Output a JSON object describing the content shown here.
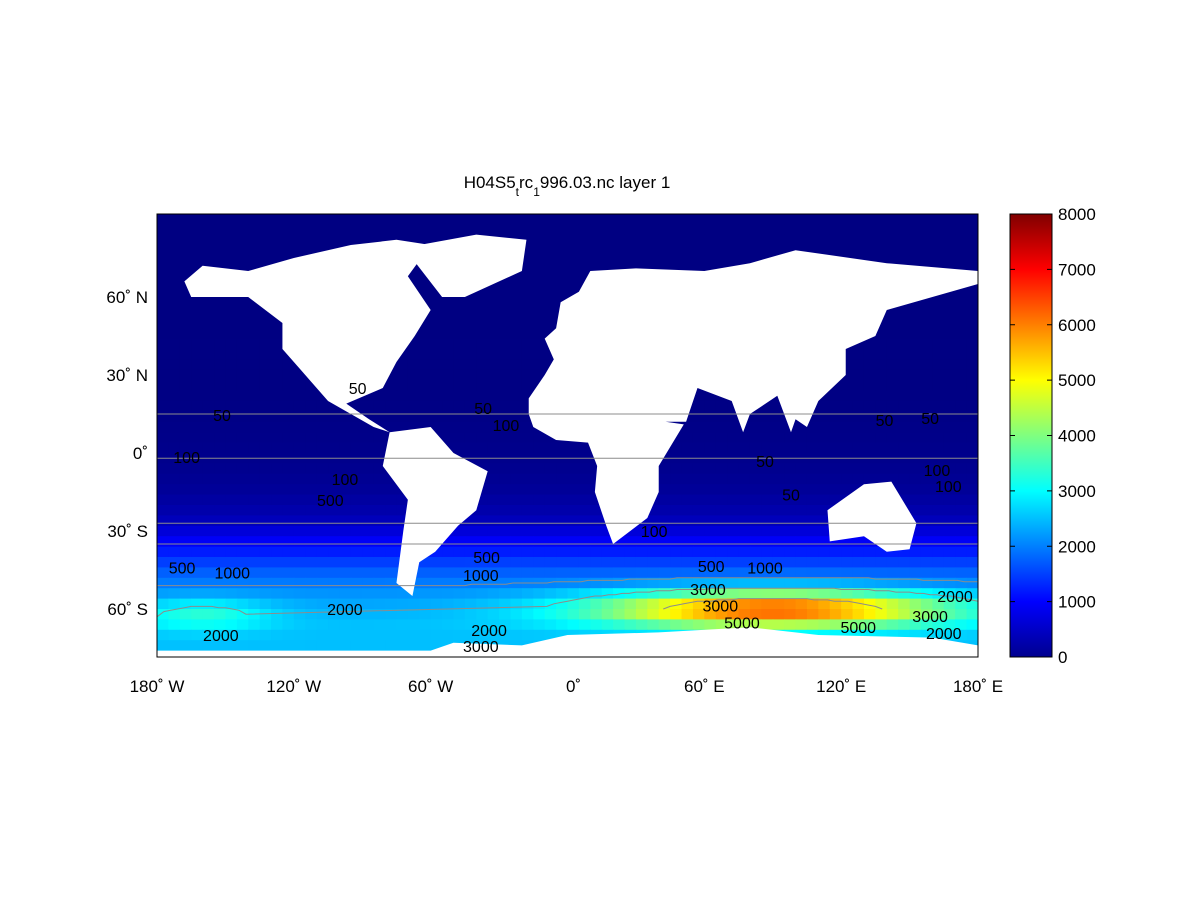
{
  "chart_data": {
    "type": "heatmap",
    "title": {
      "base": "H04S5",
      "sub1": "t",
      "mid": "rc",
      "sub2": "1",
      "rest": "996.03.nc layer 1"
    },
    "projection": "equirectangular world map",
    "xlim": [
      -180,
      180
    ],
    "ylim": [
      -78,
      92
    ],
    "x_ticks": [
      {
        "value": -180,
        "label": "180˚ W"
      },
      {
        "value": -120,
        "label": "120˚ W"
      },
      {
        "value": -60,
        "label": "60˚ W"
      },
      {
        "value": 0,
        "label": "0˚"
      },
      {
        "value": 60,
        "label": "60˚ E"
      },
      {
        "value": 120,
        "label": "120˚ E"
      },
      {
        "value": 180,
        "label": "180˚ E"
      }
    ],
    "y_ticks": [
      {
        "value": 60,
        "label": "60˚ N"
      },
      {
        "value": 30,
        "label": "30˚ N"
      },
      {
        "value": 0,
        "label": "0˚"
      },
      {
        "value": -30,
        "label": "30˚ S"
      },
      {
        "value": -60,
        "label": "60˚ S"
      }
    ],
    "colorbar": {
      "colormap": "jet",
      "range": [
        0,
        8000
      ],
      "ticks": [
        "0",
        "1000",
        "2000",
        "3000",
        "4000",
        "5000",
        "6000",
        "7000",
        "8000"
      ]
    },
    "land_color": "#ffffff",
    "contour_color": "#8c8c8c",
    "contour_levels": [
      50,
      100,
      500,
      1000,
      2000,
      3000,
      5000
    ],
    "contour_labels": [
      {
        "text": "50",
        "lon": -92,
        "lat": 25
      },
      {
        "text": "50",
        "lon": -151.5,
        "lat": 14.6
      },
      {
        "text": "50",
        "lon": -37,
        "lat": 17
      },
      {
        "text": "100",
        "lon": -27,
        "lat": 11
      },
      {
        "text": "100",
        "lon": -167,
        "lat": -1.5
      },
      {
        "text": "100",
        "lon": -97.6,
        "lat": -10
      },
      {
        "text": "500",
        "lon": -104,
        "lat": -18
      },
      {
        "text": "500",
        "lon": -169,
        "lat": -44
      },
      {
        "text": "1000",
        "lon": -147,
        "lat": -46
      },
      {
        "text": "2000",
        "lon": -97.6,
        "lat": -60
      },
      {
        "text": "2000",
        "lon": -152,
        "lat": -70
      },
      {
        "text": "500",
        "lon": -35.5,
        "lat": -40
      },
      {
        "text": "1000",
        "lon": -38,
        "lat": -47
      },
      {
        "text": "2000",
        "lon": -34.4,
        "lat": -68
      },
      {
        "text": "3000",
        "lon": -38,
        "lat": -75
      },
      {
        "text": "100",
        "lon": 38,
        "lat": -30
      },
      {
        "text": "50",
        "lon": 86.6,
        "lat": -3
      },
      {
        "text": "50",
        "lon": 98,
        "lat": -16
      },
      {
        "text": "50",
        "lon": 139,
        "lat": 12.7
      },
      {
        "text": "50",
        "lon": 159,
        "lat": 13.5
      },
      {
        "text": "100",
        "lon": 162,
        "lat": -6.5
      },
      {
        "text": "100",
        "lon": 167,
        "lat": -12.7
      },
      {
        "text": "500",
        "lon": 63,
        "lat": -43.5
      },
      {
        "text": "1000",
        "lon": 86.6,
        "lat": -44
      },
      {
        "text": "3000",
        "lon": 61.6,
        "lat": -56.5
      },
      {
        "text": "3000",
        "lon": 67,
        "lat": -58.5
      },
      {
        "text": "5000",
        "lon": 76.5,
        "lat": -61
      },
      {
        "text": "5000",
        "lon": 127.5,
        "lat": -67
      },
      {
        "text": "2000",
        "lon": 170,
        "lat": -55
      },
      {
        "text": "3000",
        "lon": 159,
        "lat": -65
      },
      {
        "text": "2000",
        "lon": 165,
        "lat": -67
      }
    ]
  }
}
